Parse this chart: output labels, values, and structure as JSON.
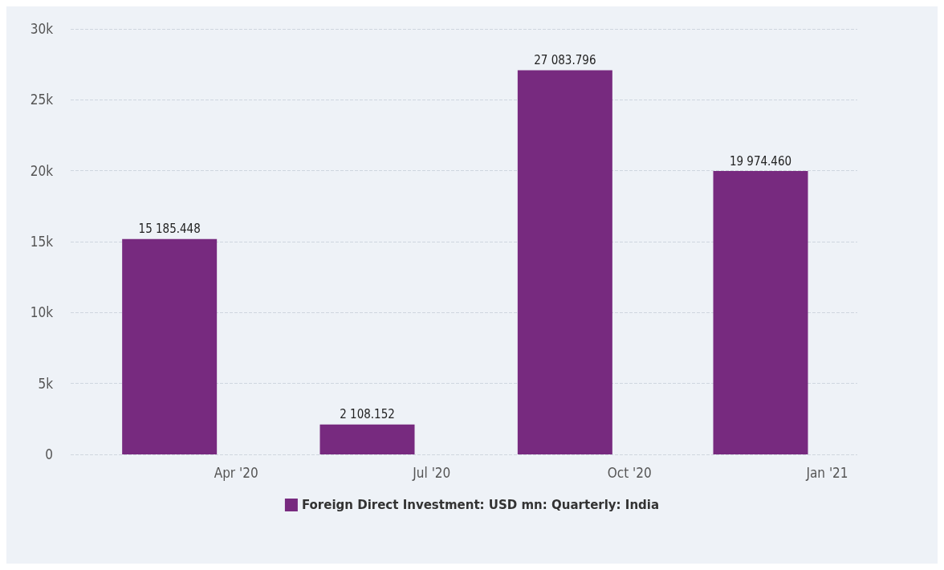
{
  "chart_data": {
    "type": "bar",
    "x": [
      "2020-03",
      "2020-06",
      "2020-09",
      "2020-12"
    ],
    "series": [
      {
        "name": "Foreign Direct Investment: USD mn: Quarterly: India",
        "color": "#772a7f",
        "values": [
          15185.448,
          2108.152,
          27083.796,
          19974.46
        ],
        "value_labels": [
          "15 185.448",
          "2 108.152",
          "27 083.796",
          "19 974.460"
        ]
      }
    ],
    "xlim": [
      "2020-01-15",
      "2021-01-15"
    ],
    "xticks": [
      {
        "value": "2020-04",
        "label": "Apr '20"
      },
      {
        "value": "2020-07",
        "label": "Jul '20"
      },
      {
        "value": "2020-10",
        "label": "Oct '20"
      },
      {
        "value": "2021-01",
        "label": "Jan '21"
      }
    ],
    "ylim": [
      0,
      30000
    ],
    "yticks": [
      {
        "value": 0,
        "label": "0"
      },
      {
        "value": 5000,
        "label": "5k"
      },
      {
        "value": 10000,
        "label": "10k"
      },
      {
        "value": 15000,
        "label": "15k"
      },
      {
        "value": 20000,
        "label": "20k"
      },
      {
        "value": 25000,
        "label": "25k"
      },
      {
        "value": 30000,
        "label": "30k"
      }
    ],
    "grid": "y",
    "legend": "bottom"
  }
}
